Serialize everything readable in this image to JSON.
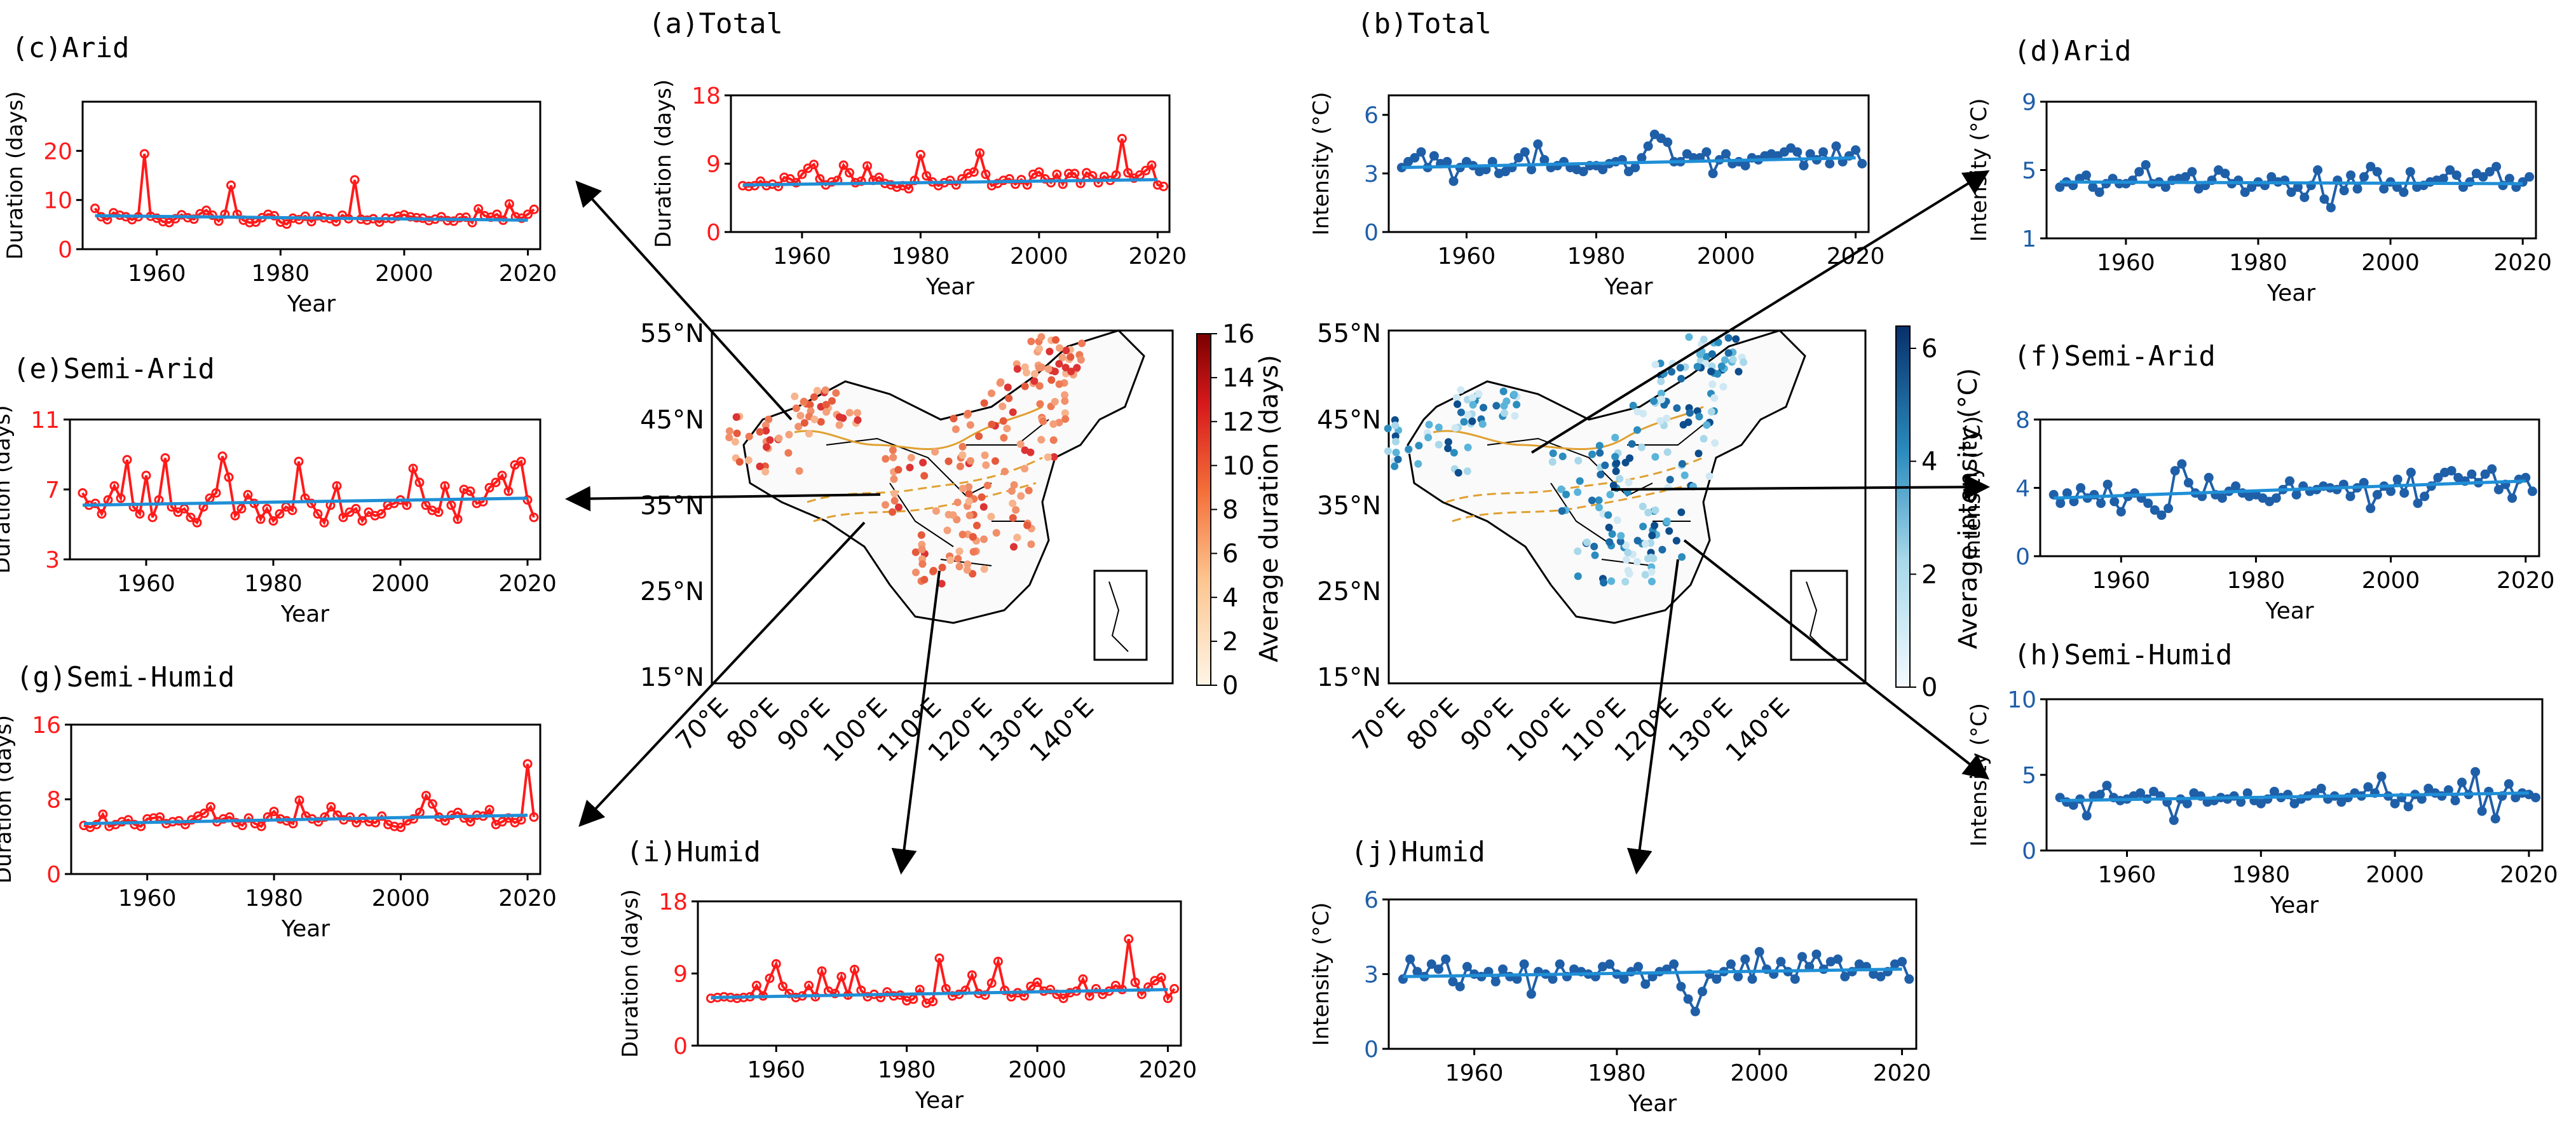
{
  "figure": {
    "map_duration": {
      "lat_labels": [
        "55°N",
        "45°N",
        "35°N",
        "25°N",
        "15°N"
      ],
      "lon_labels": [
        "70°E",
        "80°E",
        "90°E",
        "100°E",
        "110°E",
        "120°E",
        "130°E",
        "140°E"
      ],
      "colorbar": {
        "label": "Average duration (days)",
        "ticks": [
          "16",
          "14",
          "12",
          "10",
          "8",
          "6",
          "4",
          "2",
          "0"
        ],
        "low_color": "#fde6c8",
        "high_color": "#8b0000"
      }
    },
    "map_intensity": {
      "lat_labels": [
        "55°N",
        "45°N",
        "35°N",
        "25°N",
        "15°N"
      ],
      "lon_labels": [
        "70°E",
        "80°E",
        "90°E",
        "100°E",
        "110°E",
        "120°E",
        "130°E",
        "140°E"
      ],
      "colorbar": {
        "label": "Average intensity (°C)",
        "ticks": [
          "6",
          "4",
          "2",
          "0"
        ],
        "low_color": "#f2f7fc",
        "high_color": "#08306b"
      }
    },
    "colors": {
      "duration_series": "#ff1a1a",
      "intensity_series": "#1f5fa8",
      "trend": "#1f8fd6",
      "zone_lines": "#e0a030"
    }
  },
  "chart_data": [
    {
      "id": "a",
      "type": "line",
      "title": "(a)Total",
      "xlabel": "Year",
      "ylabel": "Duration (days)",
      "xlim": [
        1948,
        2022
      ],
      "ylim": [
        0,
        18
      ],
      "yticks": [
        0,
        9,
        18
      ],
      "xticks": [
        1960,
        1980,
        2000,
        2020
      ],
      "color": "red",
      "trend": [
        6.2,
        6.9
      ],
      "values": [
        6.1,
        6.0,
        6.1,
        6.7,
        6.1,
        6.3,
        6.0,
        7.2,
        7.0,
        6.5,
        7.6,
        8.4,
        8.9,
        7.0,
        6.2,
        6.6,
        6.8,
        8.8,
        7.8,
        6.5,
        6.7,
        8.7,
        6.8,
        7.2,
        6.4,
        6.2,
        5.9,
        6.1,
        5.7,
        6.8,
        10.2,
        7.4,
        6.6,
        6.1,
        6.5,
        6.8,
        6.2,
        7.0,
        7.7,
        7.9,
        10.4,
        7.6,
        6.1,
        6.4,
        6.8,
        7.0,
        6.3,
        6.9,
        6.2,
        7.6,
        7.9,
        7.0,
        6.5,
        7.6,
        6.3,
        7.7,
        7.7,
        6.4,
        7.8,
        7.4,
        6.5,
        7.3,
        6.8,
        7.5,
        12.3,
        7.8,
        7.1,
        7.5,
        8.1,
        8.8,
        6.2,
        6.0
      ]
    },
    {
      "id": "b",
      "type": "line",
      "title": "(b)Total",
      "xlabel": "Year",
      "ylabel": "Intensity (°C)",
      "xlim": [
        1948,
        2022
      ],
      "ylim": [
        0,
        7
      ],
      "yticks": [
        0,
        3,
        6
      ],
      "xticks": [
        1960,
        1980,
        2000,
        2020
      ],
      "color": "blue",
      "trend": [
        3.3,
        3.8
      ],
      "values": [
        3.3,
        3.6,
        3.8,
        4.1,
        3.3,
        3.9,
        3.5,
        3.6,
        2.6,
        3.3,
        3.6,
        3.4,
        3.1,
        3.2,
        3.6,
        3.0,
        3.1,
        3.3,
        3.8,
        4.1,
        3.2,
        4.5,
        3.7,
        3.3,
        3.4,
        3.6,
        3.3,
        3.2,
        3.1,
        3.4,
        3.4,
        3.2,
        3.5,
        3.6,
        3.7,
        3.1,
        3.3,
        3.8,
        4.4,
        5.0,
        4.8,
        4.6,
        3.6,
        3.6,
        4.0,
        3.8,
        3.8,
        4.1,
        3.0,
        3.7,
        4.0,
        3.5,
        3.6,
        3.4,
        3.8,
        3.7,
        3.9,
        4.0,
        3.9,
        4.1,
        4.3,
        4.1,
        3.4,
        4.0,
        3.7,
        4.1,
        3.5,
        4.4,
        3.6,
        3.9,
        4.2,
        3.5
      ]
    },
    {
      "id": "c",
      "type": "line",
      "title": "(c)Arid",
      "xlabel": "Year",
      "ylabel": "Duration (days)",
      "xlim": [
        1948,
        2022
      ],
      "ylim": [
        0,
        30
      ],
      "yticks": [
        0,
        10,
        20
      ],
      "xticks": [
        1960,
        1980,
        2000,
        2020
      ],
      "color": "red",
      "trend": [
        6.8,
        5.9
      ],
      "values": [
        8.3,
        6.6,
        6.0,
        7.4,
        6.9,
        6.6,
        6.0,
        6.6,
        19.4,
        6.7,
        6.3,
        5.6,
        5.4,
        6.2,
        7.0,
        6.4,
        6.1,
        7.2,
        7.9,
        6.9,
        5.7,
        7.1,
        13.0,
        7.1,
        5.9,
        5.4,
        5.5,
        6.4,
        7.1,
        6.8,
        5.5,
        5.1,
        6.3,
        6.0,
        6.7,
        5.6,
        6.8,
        6.4,
        6.2,
        5.6,
        6.9,
        6.2,
        14.1,
        6.1,
        5.9,
        6.2,
        5.5,
        6.3,
        6.2,
        6.7,
        7.0,
        6.6,
        6.4,
        6.3,
        5.8,
        6.1,
        6.6,
        5.8,
        5.7,
        6.4,
        6.5,
        5.4,
        8.2,
        6.8,
        6.5,
        7.1,
        5.9,
        9.2,
        6.6,
        6.3,
        7.1,
        8.1
      ]
    },
    {
      "id": "d",
      "type": "line",
      "title": "(d)Arid",
      "xlabel": "Year",
      "ylabel": "Intensity (°C)",
      "xlim": [
        1948,
        2022
      ],
      "ylim": [
        1,
        9
      ],
      "yticks": [
        1,
        5,
        9
      ],
      "xticks": [
        1960,
        1980,
        2000,
        2020
      ],
      "color": "blue",
      "trend": [
        4.3,
        4.2
      ],
      "values": [
        4.0,
        4.3,
        4.1,
        4.5,
        4.7,
        4.0,
        3.7,
        4.2,
        4.5,
        4.2,
        4.2,
        4.4,
        4.9,
        5.3,
        4.2,
        4.3,
        4.0,
        4.4,
        4.5,
        4.6,
        4.9,
        3.9,
        4.1,
        4.4,
        5.0,
        4.8,
        4.2,
        4.4,
        3.7,
        4.0,
        4.3,
        4.1,
        4.6,
        4.3,
        4.4,
        3.7,
        4.0,
        3.4,
        4.1,
        5.0,
        3.3,
        2.8,
        4.4,
        3.8,
        4.7,
        3.9,
        4.6,
        5.2,
        4.9,
        3.9,
        4.3,
        4.0,
        3.7,
        4.9,
        4.0,
        4.1,
        4.3,
        4.4,
        4.5,
        5.0,
        4.7,
        4.0,
        4.3,
        4.8,
        4.6,
        4.9,
        5.2,
        4.1,
        4.5,
        4.0,
        4.3,
        4.6
      ]
    },
    {
      "id": "e",
      "type": "line",
      "title": "(e)Semi-Arid",
      "xlabel": "Year",
      "ylabel": "Duration (days)",
      "xlim": [
        1948,
        2022
      ],
      "ylim": [
        3,
        11
      ],
      "yticks": [
        3,
        7,
        11
      ],
      "xticks": [
        1960,
        1980,
        2000,
        2020
      ],
      "color": "red",
      "trend": [
        6.1,
        6.5
      ],
      "values": [
        6.8,
        6.1,
        6.2,
        5.6,
        6.4,
        7.2,
        6.5,
        8.7,
        6.0,
        5.6,
        7.8,
        5.4,
        6.4,
        8.8,
        6.0,
        5.7,
        5.9,
        5.4,
        5.1,
        6.0,
        6.5,
        6.8,
        8.9,
        7.7,
        5.5,
        5.9,
        6.7,
        6.2,
        5.3,
        5.9,
        5.2,
        5.6,
        6.0,
        5.8,
        8.6,
        6.5,
        6.2,
        5.6,
        5.1,
        6.1,
        7.2,
        5.4,
        5.7,
        5.9,
        5.2,
        5.7,
        5.5,
        5.6,
        6.1,
        6.2,
        6.4,
        6.1,
        8.2,
        7.4,
        6.1,
        5.8,
        5.7,
        7.2,
        6.1,
        5.3,
        7.0,
        6.9,
        6.2,
        6.3,
        7.1,
        7.4,
        7.8,
        6.9,
        8.4,
        8.6,
        6.4,
        5.4
      ]
    },
    {
      "id": "f",
      "type": "line",
      "title": "(f)Semi-Arid",
      "xlabel": "Year",
      "ylabel": "Intensity (°C)",
      "xlim": [
        1948,
        2022
      ],
      "ylim": [
        0,
        8
      ],
      "yticks": [
        0,
        4,
        8
      ],
      "xticks": [
        1960,
        1980,
        2000,
        2020
      ],
      "color": "blue",
      "trend": [
        3.4,
        4.4
      ],
      "values": [
        3.6,
        3.1,
        3.7,
        3.2,
        4.0,
        3.4,
        3.6,
        3.1,
        4.2,
        3.2,
        2.6,
        3.5,
        3.7,
        3.4,
        3.1,
        2.7,
        2.4,
        2.8,
        5.0,
        5.4,
        4.3,
        3.7,
        3.5,
        4.6,
        3.6,
        3.4,
        3.8,
        4.1,
        3.7,
        3.5,
        3.6,
        3.4,
        3.2,
        3.4,
        3.9,
        4.4,
        3.6,
        4.1,
        3.8,
        3.9,
        4.1,
        4.0,
        3.9,
        4.2,
        3.5,
        4.0,
        4.3,
        2.8,
        3.6,
        4.1,
        3.8,
        4.5,
        3.7,
        4.9,
        3.1,
        3.5,
        4.1,
        4.6,
        4.9,
        5.0,
        4.6,
        4.4,
        4.8,
        4.3,
        4.8,
        5.1,
        3.9,
        4.2,
        3.4,
        4.5,
        4.6,
        3.8
      ]
    },
    {
      "id": "g",
      "type": "line",
      "title": "(g)Semi-Humid",
      "xlabel": "Year",
      "ylabel": "Duration (days)",
      "xlim": [
        1948,
        2022
      ],
      "ylim": [
        0,
        16
      ],
      "yticks": [
        0,
        8,
        16
      ],
      "xticks": [
        1960,
        1980,
        2000,
        2020
      ],
      "color": "red",
      "trend": [
        5.4,
        6.3
      ],
      "values": [
        5.2,
        5.0,
        5.3,
        6.4,
        5.1,
        5.3,
        5.6,
        5.8,
        5.3,
        5.1,
        5.9,
        6.0,
        6.1,
        5.4,
        5.6,
        5.7,
        5.3,
        5.8,
        6.2,
        6.5,
        7.2,
        5.6,
        5.9,
        6.1,
        5.5,
        5.2,
        6.0,
        5.4,
        5.1,
        6.1,
        6.7,
        5.9,
        5.7,
        5.4,
        7.9,
        6.2,
        5.9,
        5.6,
        6.1,
        7.2,
        6.3,
        5.8,
        6.1,
        5.5,
        6.0,
        5.6,
        5.5,
        6.2,
        5.3,
        5.1,
        5.0,
        5.7,
        5.9,
        6.6,
        8.4,
        7.5,
        6.1,
        5.7,
        6.3,
        6.6,
        6.0,
        5.6,
        6.3,
        6.2,
        6.9,
        5.3,
        5.6,
        6.0,
        5.5,
        5.8,
        11.8,
        6.1
      ]
    },
    {
      "id": "h",
      "type": "line",
      "title": "(h)Semi-Humid",
      "xlabel": "Year",
      "ylabel": "Intensity (°C)",
      "xlim": [
        1948,
        2022
      ],
      "ylim": [
        0,
        10
      ],
      "yticks": [
        0,
        5,
        10
      ],
      "xticks": [
        1960,
        1980,
        2000,
        2020
      ],
      "color": "blue",
      "trend": [
        3.3,
        3.8
      ],
      "values": [
        3.5,
        3.2,
        3.0,
        3.4,
        2.3,
        3.6,
        3.7,
        4.3,
        3.5,
        3.3,
        3.4,
        3.6,
        3.8,
        3.4,
        3.9,
        3.6,
        3.2,
        2.0,
        3.4,
        3.1,
        3.8,
        3.6,
        3.2,
        3.3,
        3.5,
        3.4,
        3.6,
        3.2,
        3.8,
        3.3,
        3.1,
        3.4,
        3.9,
        3.5,
        3.7,
        3.1,
        3.4,
        3.6,
        3.8,
        4.1,
        3.4,
        3.6,
        3.2,
        3.5,
        3.8,
        3.6,
        4.2,
        3.8,
        4.9,
        3.6,
        3.1,
        3.5,
        2.9,
        3.7,
        3.4,
        4.1,
        3.8,
        3.6,
        4.0,
        3.3,
        4.5,
        3.7,
        5.2,
        2.6,
        3.9,
        2.1,
        3.6,
        4.4,
        3.5,
        3.8,
        3.7,
        3.5
      ]
    },
    {
      "id": "i",
      "type": "line",
      "title": "(i)Humid",
      "xlabel": "Year",
      "ylabel": "Duration (days)",
      "xlim": [
        1948,
        2022
      ],
      "ylim": [
        0,
        18
      ],
      "yticks": [
        0,
        9,
        18
      ],
      "xticks": [
        1960,
        1980,
        2000,
        2020
      ],
      "color": "red",
      "trend": [
        6.0,
        7.0
      ],
      "values": [
        5.9,
        6.0,
        6.1,
        6.0,
        5.9,
        6.0,
        6.1,
        7.5,
        6.2,
        8.4,
        10.2,
        7.4,
        6.5,
        6.0,
        6.2,
        7.5,
        6.1,
        9.3,
        6.8,
        6.5,
        8.6,
        6.3,
        9.5,
        6.9,
        6.1,
        6.4,
        6.0,
        6.7,
        6.2,
        6.3,
        5.6,
        5.8,
        7.0,
        5.3,
        5.5,
        10.9,
        7.1,
        6.2,
        6.4,
        6.9,
        8.8,
        6.5,
        6.3,
        7.8,
        10.5,
        6.9,
        6.1,
        6.6,
        6.2,
        7.4,
        7.9,
        6.8,
        7.0,
        6.4,
        5.9,
        6.6,
        6.8,
        8.3,
        6.2,
        7.1,
        6.4,
        6.8,
        7.5,
        7.0,
        13.3,
        7.9,
        6.4,
        7.3,
        8.1,
        8.5,
        5.9,
        7.1
      ]
    },
    {
      "id": "j",
      "type": "line",
      "title": "(j)Humid",
      "xlabel": "Year",
      "ylabel": "Intensity (°C)",
      "xlim": [
        1948,
        2022
      ],
      "ylim": [
        0,
        6
      ],
      "yticks": [
        0,
        3,
        6
      ],
      "xticks": [
        1960,
        1980,
        2000,
        2020
      ],
      "color": "blue",
      "trend": [
        2.9,
        3.2
      ],
      "values": [
        2.8,
        3.6,
        3.1,
        2.9,
        3.4,
        3.2,
        3.6,
        2.7,
        2.5,
        3.3,
        3.0,
        2.9,
        3.1,
        2.7,
        3.2,
        2.9,
        2.8,
        3.4,
        2.2,
        3.1,
        3.0,
        2.8,
        3.4,
        2.9,
        3.2,
        3.1,
        3.0,
        2.9,
        3.3,
        3.4,
        3.0,
        2.8,
        3.1,
        3.3,
        2.6,
        2.9,
        3.1,
        3.2,
        3.4,
        2.5,
        2.0,
        1.5,
        2.3,
        3.0,
        2.8,
        3.1,
        3.4,
        2.9,
        3.6,
        2.8,
        3.9,
        3.2,
        3.0,
        3.5,
        3.1,
        2.8,
        3.7,
        3.3,
        3.8,
        3.2,
        3.5,
        3.6,
        2.9,
        3.1,
        3.4,
        3.3,
        3.0,
        2.9,
        3.1,
        3.4,
        3.5,
        2.8
      ]
    }
  ]
}
